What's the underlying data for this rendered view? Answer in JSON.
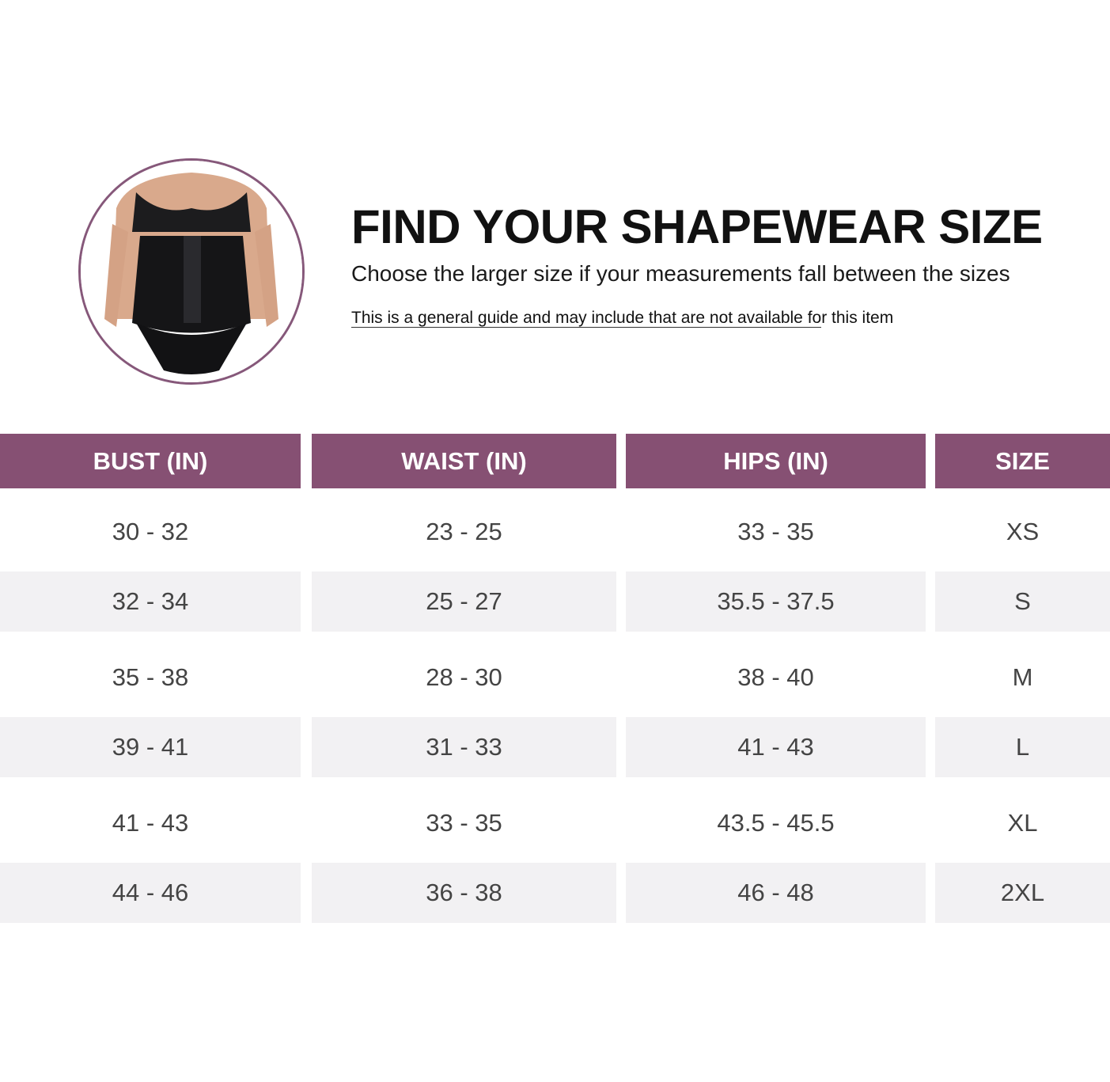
{
  "header": {
    "title": "FIND YOUR SHAPEWEAR SIZE",
    "subtitle": "Choose the larger size if your measurements fall between the sizes",
    "note_underlined": "This is a general guide and may include that are not available fo",
    "note_rest": "r this item"
  },
  "colors": {
    "accent": "#865073",
    "row_alt": "#f2f1f3"
  },
  "table": {
    "columns": [
      "BUST (IN)",
      "WAIST (IN)",
      "HIPS (IN)",
      "SIZE"
    ],
    "rows": [
      [
        "30 - 32",
        "23 - 25",
        "33 - 35",
        "XS"
      ],
      [
        "32 - 34",
        "25 - 27",
        "35.5 - 37.5",
        "S"
      ],
      [
        "35 - 38",
        "28 - 30",
        "38 - 40",
        "M"
      ],
      [
        "39 - 41",
        "31 - 33",
        "41 - 43",
        "L"
      ],
      [
        "41 - 43",
        "33 - 35",
        "43.5 - 45.5",
        "XL"
      ],
      [
        "44 - 46",
        "36 - 38",
        "46 - 48",
        "2XL"
      ]
    ]
  }
}
